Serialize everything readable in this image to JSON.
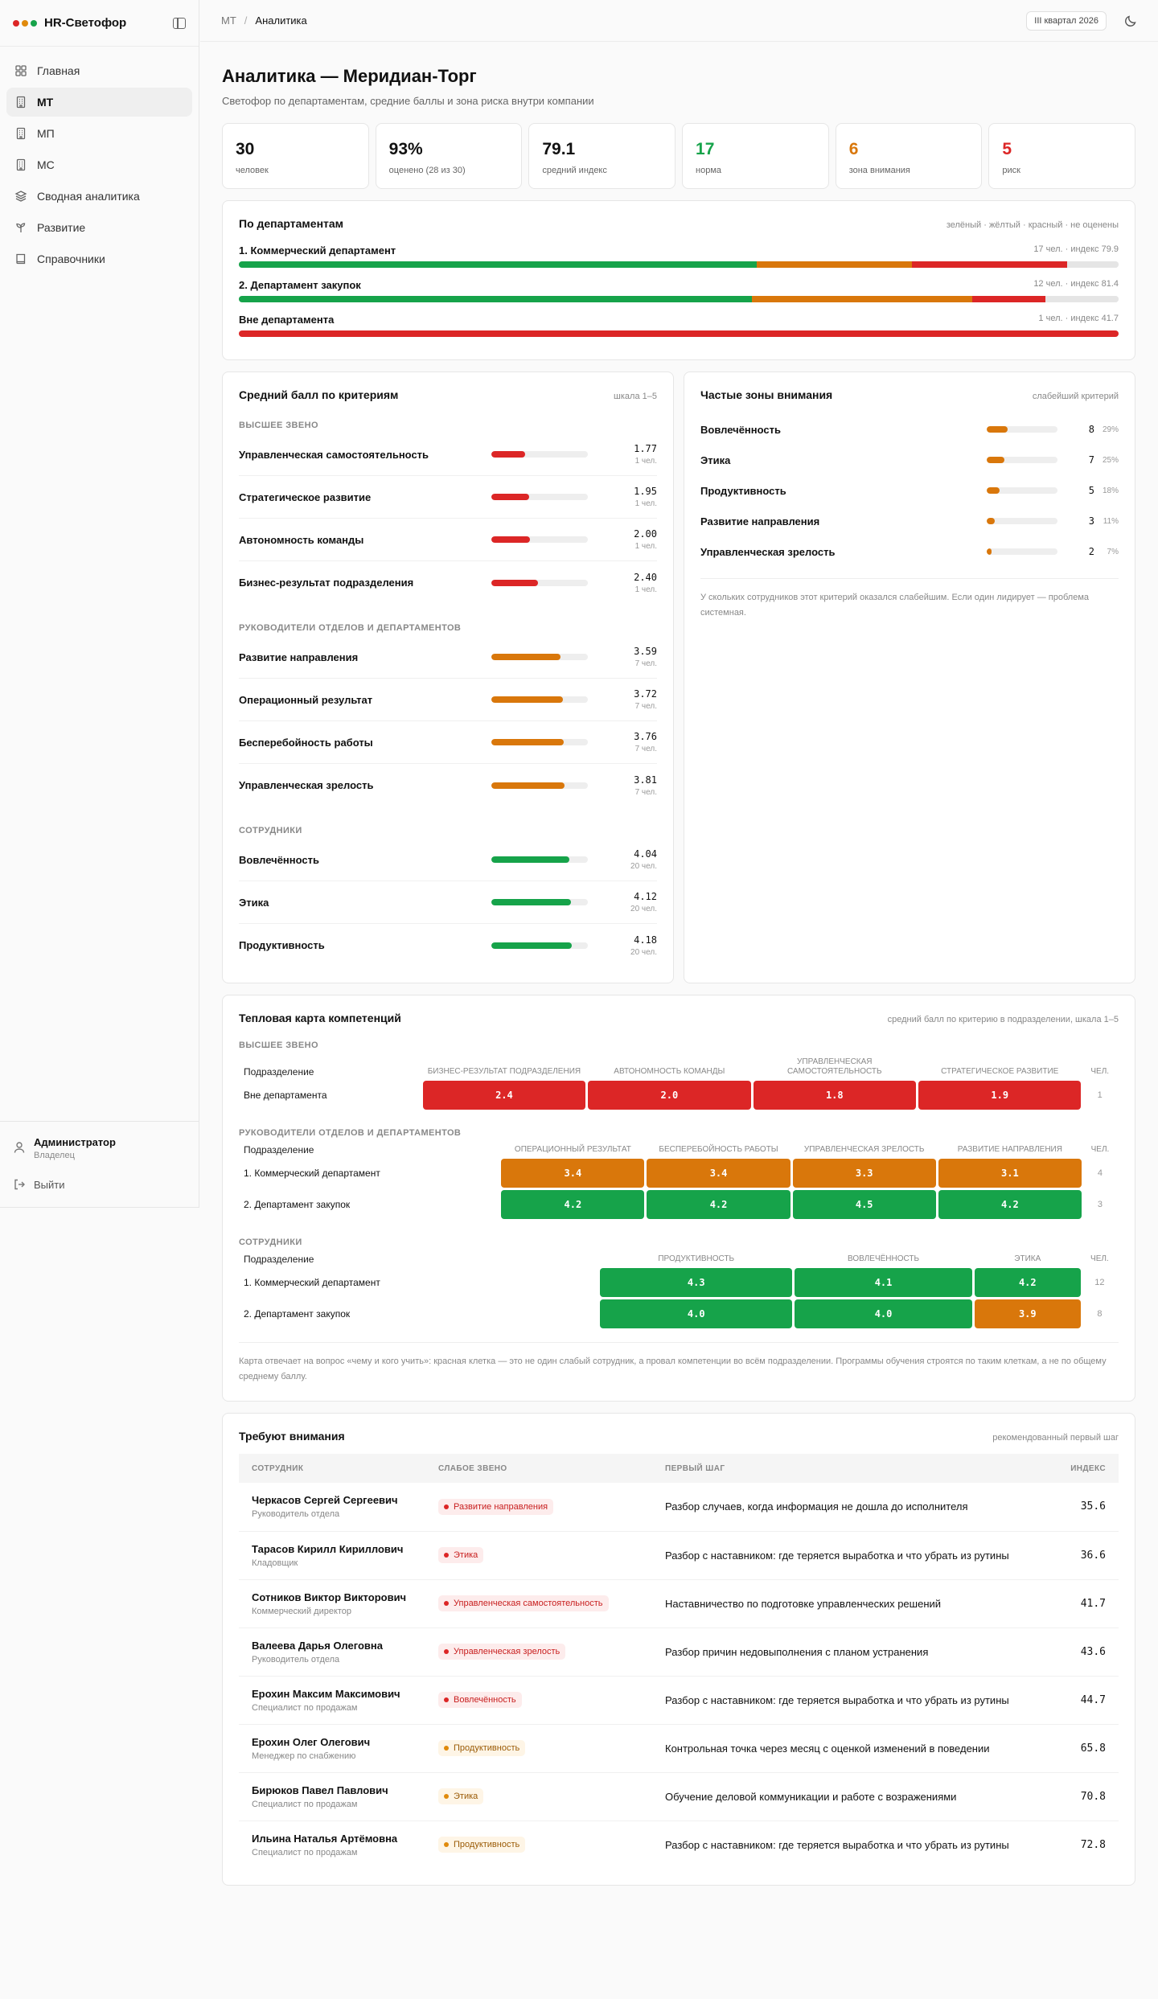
{
  "app": {
    "name": "HR-Светофор",
    "brand_dots": [
      "#dc2626",
      "#e08a0c",
      "#16a34a"
    ]
  },
  "sidebar": {
    "items": [
      {
        "label": "Главная",
        "icon": "grid-icon",
        "active": false
      },
      {
        "label": "МТ",
        "icon": "building-icon",
        "active": true
      },
      {
        "label": "МП",
        "icon": "building-icon",
        "active": false
      },
      {
        "label": "МС",
        "icon": "building-icon",
        "active": false
      },
      {
        "label": "Сводная аналитика",
        "icon": "layers-icon",
        "active": false
      },
      {
        "label": "Развитие",
        "icon": "sprout-icon",
        "active": false
      },
      {
        "label": "Справочники",
        "icon": "book-icon",
        "active": false
      }
    ],
    "user": {
      "name": "Администратор",
      "role": "Владелец"
    },
    "logout_label": "Выйти"
  },
  "topbar": {
    "crumb_root": "МТ",
    "crumb_current": "Аналитика",
    "period": "III квартал 2026"
  },
  "page": {
    "title": "Аналитика — Меридиан-Торг",
    "subtitle": "Светофор по департаментам, средние баллы и зона риска внутри компании"
  },
  "kpis": [
    {
      "value": "30",
      "label": "человек",
      "color": "#111111"
    },
    {
      "value": "93%",
      "label": "оценено (28 из 30)",
      "color": "#111111"
    },
    {
      "value": "79.1",
      "label": "средний индекс",
      "color": "#111111"
    },
    {
      "value": "17",
      "label": "норма",
      "color": "#16a34a"
    },
    {
      "value": "6",
      "label": "зона внимания",
      "color": "#d9770b"
    },
    {
      "value": "5",
      "label": "риск",
      "color": "#dc2626"
    }
  ],
  "colors": {
    "green": "#16a34a",
    "amber": "#d9770b",
    "red": "#dc2626",
    "grey": "#e5e5e5"
  },
  "departments": {
    "title": "По департаментам",
    "legend": "зелёный · жёлтый · красный · не оценены",
    "items": [
      {
        "name": "1. Коммерческий департамент",
        "meta": "17 чел. · индекс 79.9",
        "segments": [
          10,
          3,
          3,
          1
        ]
      },
      {
        "name": "2. Департамент закупок",
        "meta": "12 чел. · индекс 81.4",
        "segments": [
          7,
          3,
          1,
          1
        ]
      },
      {
        "name": "Вне департамента",
        "meta": "1 чел. · индекс 41.7",
        "segments": [
          0,
          0,
          1,
          0
        ]
      }
    ]
  },
  "criteria": {
    "title": "Средний балл по критериям",
    "meta": "шкала 1–5",
    "groups": [
      {
        "label": "Высшее звено",
        "items": [
          {
            "name": "Управленческая самостоятельность",
            "value": "1.77",
            "count": "1 чел.",
            "score": 1.77,
            "level": "red"
          },
          {
            "name": "Стратегическое развитие",
            "value": "1.95",
            "count": "1 чел.",
            "score": 1.95,
            "level": "red"
          },
          {
            "name": "Автономность команды",
            "value": "2.00",
            "count": "1 чел.",
            "score": 2.0,
            "level": "red"
          },
          {
            "name": "Бизнес-результат подразделения",
            "value": "2.40",
            "count": "1 чел.",
            "score": 2.4,
            "level": "red"
          }
        ]
      },
      {
        "label": "Руководители отделов и департаментов",
        "items": [
          {
            "name": "Развитие направления",
            "value": "3.59",
            "count": "7 чел.",
            "score": 3.59,
            "level": "amber"
          },
          {
            "name": "Операционный результат",
            "value": "3.72",
            "count": "7 чел.",
            "score": 3.72,
            "level": "amber"
          },
          {
            "name": "Бесперебойность работы",
            "value": "3.76",
            "count": "7 чел.",
            "score": 3.76,
            "level": "amber"
          },
          {
            "name": "Управленческая зрелость",
            "value": "3.81",
            "count": "7 чел.",
            "score": 3.81,
            "level": "amber"
          }
        ]
      },
      {
        "label": "Сотрудники",
        "items": [
          {
            "name": "Вовлечённость",
            "value": "4.04",
            "count": "20 чел.",
            "score": 4.04,
            "level": "green"
          },
          {
            "name": "Этика",
            "value": "4.12",
            "count": "20 чел.",
            "score": 4.12,
            "level": "green"
          },
          {
            "name": "Продуктивность",
            "value": "4.18",
            "count": "20 чел.",
            "score": 4.18,
            "level": "green"
          }
        ]
      }
    ]
  },
  "zones": {
    "title": "Частые зоны внимания",
    "meta": "слабейший критерий",
    "items": [
      {
        "name": "Вовлечённость",
        "count": "8",
        "pct": "29%",
        "share": 0.29
      },
      {
        "name": "Этика",
        "count": "7",
        "pct": "25%",
        "share": 0.25
      },
      {
        "name": "Продуктивность",
        "count": "5",
        "pct": "18%",
        "share": 0.18
      },
      {
        "name": "Развитие направления",
        "count": "3",
        "pct": "11%",
        "share": 0.11
      },
      {
        "name": "Управленческая зрелость",
        "count": "2",
        "pct": "7%",
        "share": 0.07
      }
    ],
    "note": "У скольких сотрудников этот критерий оказался слабейшим. Если один лидирует — проблема системная."
  },
  "heatmap": {
    "title": "Тепловая карта компетенций",
    "meta": "средний балл по критерию в подразделении, шкала 1–5",
    "col_first": "Подразделение",
    "col_count": "чел.",
    "sections": [
      {
        "label": "Высшее звено",
        "columns": [
          "Бизнес-результат подразделения",
          "Автономность команды",
          "Управленческая самостоятельность",
          "Стратегическое развитие"
        ],
        "rows": [
          {
            "name": "Вне департамента",
            "cells": [
              {
                "v": "2.4",
                "c": "red"
              },
              {
                "v": "2.0",
                "c": "red"
              },
              {
                "v": "1.8",
                "c": "red"
              },
              {
                "v": "1.9",
                "c": "red"
              }
            ],
            "count": "1"
          }
        ]
      },
      {
        "label": "Руководители отделов и департаментов",
        "columns": [
          "Операционный результат",
          "Бесперебойность работы",
          "Управленческая зрелость",
          "Развитие направления"
        ],
        "rows": [
          {
            "name": "1. Коммерческий департамент",
            "cells": [
              {
                "v": "3.4",
                "c": "amber"
              },
              {
                "v": "3.4",
                "c": "amber"
              },
              {
                "v": "3.3",
                "c": "amber"
              },
              {
                "v": "3.1",
                "c": "amber"
              }
            ],
            "count": "4"
          },
          {
            "name": "2. Департамент закупок",
            "cells": [
              {
                "v": "4.2",
                "c": "green"
              },
              {
                "v": "4.2",
                "c": "green"
              },
              {
                "v": "4.5",
                "c": "green"
              },
              {
                "v": "4.2",
                "c": "green"
              }
            ],
            "count": "3"
          }
        ]
      },
      {
        "label": "Сотрудники",
        "columns": [
          "Продуктивность",
          "Вовлечённость",
          "Этика"
        ],
        "rows": [
          {
            "name": "1. Коммерческий департамент",
            "cells": [
              {
                "v": "4.3",
                "c": "green"
              },
              {
                "v": "4.1",
                "c": "green"
              },
              {
                "v": "4.2",
                "c": "green"
              }
            ],
            "count": "12"
          },
          {
            "name": "2. Департамент закупок",
            "cells": [
              {
                "v": "4.0",
                "c": "green"
              },
              {
                "v": "4.0",
                "c": "green"
              },
              {
                "v": "3.9",
                "c": "amber"
              }
            ],
            "count": "8"
          }
        ]
      }
    ],
    "note": "Карта отвечает на вопрос «чему и кого учить»: красная клетка — это не один слабый сотрудник, а провал компетенции во всём подразделении. Программы обучения строятся по таким клеткам, а не по общему среднему баллу."
  },
  "attention": {
    "title": "Требуют внимания",
    "meta": "рекомендованный первый шаг",
    "columns": {
      "employee": "Сотрудник",
      "weak": "Слабое звено",
      "step": "Первый шаг",
      "index": "Индекс"
    },
    "rows": [
      {
        "name": "Черкасов Сергей Сергеевич",
        "position": "Руководитель отдела",
        "weak": "Развитие направления",
        "level": "red",
        "step": "Разбор случаев, когда информация не дошла до исполнителя",
        "index": "35.6"
      },
      {
        "name": "Тарасов Кирилл Кириллович",
        "position": "Кладовщик",
        "weak": "Этика",
        "level": "red",
        "step": "Разбор с наставником: где теряется выработка и что убрать из рутины",
        "index": "36.6"
      },
      {
        "name": "Сотников Виктор Викторович",
        "position": "Коммерческий директор",
        "weak": "Управленческая самостоятельность",
        "level": "red",
        "step": "Наставничество по подготовке управленческих решений",
        "index": "41.7"
      },
      {
        "name": "Валеева Дарья Олеговна",
        "position": "Руководитель отдела",
        "weak": "Управленческая зрелость",
        "level": "red",
        "step": "Разбор причин недовыполнения с планом устранения",
        "index": "43.6"
      },
      {
        "name": "Ерохин Максим Максимович",
        "position": "Специалист по продажам",
        "weak": "Вовлечённость",
        "level": "red",
        "step": "Разбор с наставником: где теряется выработка и что убрать из рутины",
        "index": "44.7"
      },
      {
        "name": "Ерохин Олег Олегович",
        "position": "Менеджер по снабжению",
        "weak": "Продуктивность",
        "level": "amber",
        "step": "Контрольная точка через месяц с оценкой изменений в поведении",
        "index": "65.8"
      },
      {
        "name": "Бирюков Павел Павлович",
        "position": "Специалист по продажам",
        "weak": "Этика",
        "level": "amber",
        "step": "Обучение деловой коммуникации и работе с возражениями",
        "index": "70.8"
      },
      {
        "name": "Ильина Наталья Артёмовна",
        "position": "Специалист по продажам",
        "weak": "Продуктивность",
        "level": "amber",
        "step": "Разбор с наставником: где теряется выработка и что убрать из рутины",
        "index": "72.8"
      }
    ]
  }
}
